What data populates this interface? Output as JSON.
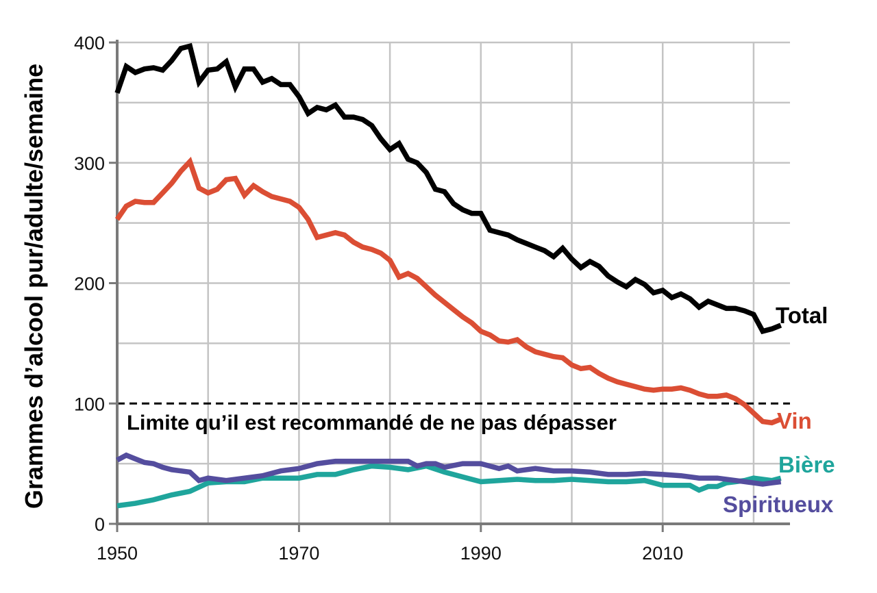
{
  "chart_data": {
    "type": "line",
    "ylabel": "Grammes d’alcool pur/adulte/semaine",
    "xlabel": "",
    "title": "",
    "xlim": [
      1950,
      2024
    ],
    "ylim": [
      0,
      400
    ],
    "x_ticks": [
      1950,
      1970,
      1990,
      2010
    ],
    "y_ticks": [
      0,
      100,
      200,
      300,
      400
    ],
    "grid": true,
    "reference_line": {
      "value": 100,
      "label": "Limite qu’il est recommandé de ne pas dépasser"
    },
    "series": [
      {
        "name": "Total",
        "color": "#000000",
        "points": [
          [
            1950,
            358
          ],
          [
            1951,
            380
          ],
          [
            1952,
            375
          ],
          [
            1953,
            378
          ],
          [
            1954,
            379
          ],
          [
            1955,
            377
          ],
          [
            1956,
            385
          ],
          [
            1957,
            395
          ],
          [
            1958,
            397
          ],
          [
            1959,
            367
          ],
          [
            1960,
            377
          ],
          [
            1961,
            378
          ],
          [
            1962,
            384
          ],
          [
            1963,
            363
          ],
          [
            1964,
            378
          ],
          [
            1965,
            378
          ],
          [
            1966,
            367
          ],
          [
            1967,
            370
          ],
          [
            1968,
            365
          ],
          [
            1969,
            365
          ],
          [
            1970,
            355
          ],
          [
            1971,
            341
          ],
          [
            1972,
            346
          ],
          [
            1973,
            344
          ],
          [
            1974,
            348
          ],
          [
            1975,
            338
          ],
          [
            1976,
            338
          ],
          [
            1977,
            336
          ],
          [
            1978,
            331
          ],
          [
            1979,
            320
          ],
          [
            1980,
            311
          ],
          [
            1981,
            316
          ],
          [
            1982,
            303
          ],
          [
            1983,
            300
          ],
          [
            1984,
            292
          ],
          [
            1985,
            278
          ],
          [
            1986,
            276
          ],
          [
            1987,
            266
          ],
          [
            1988,
            261
          ],
          [
            1989,
            258
          ],
          [
            1990,
            258
          ],
          [
            1991,
            244
          ],
          [
            1992,
            242
          ],
          [
            1993,
            240
          ],
          [
            1994,
            236
          ],
          [
            1995,
            233
          ],
          [
            1996,
            230
          ],
          [
            1997,
            227
          ],
          [
            1998,
            222
          ],
          [
            1999,
            229
          ],
          [
            2000,
            220
          ],
          [
            2001,
            213
          ],
          [
            2002,
            218
          ],
          [
            2003,
            214
          ],
          [
            2004,
            206
          ],
          [
            2005,
            201
          ],
          [
            2006,
            197
          ],
          [
            2007,
            203
          ],
          [
            2008,
            199
          ],
          [
            2009,
            192
          ],
          [
            2010,
            194
          ],
          [
            2011,
            188
          ],
          [
            2012,
            191
          ],
          [
            2013,
            187
          ],
          [
            2014,
            180
          ],
          [
            2015,
            185
          ],
          [
            2016,
            182
          ],
          [
            2017,
            179
          ],
          [
            2018,
            179
          ],
          [
            2019,
            177
          ],
          [
            2020,
            174
          ],
          [
            2021,
            160
          ],
          [
            2022,
            162
          ],
          [
            2023,
            165
          ]
        ]
      },
      {
        "name": "Vin",
        "color": "#db4e34",
        "points": [
          [
            1950,
            253
          ],
          [
            1951,
            264
          ],
          [
            1952,
            268
          ],
          [
            1953,
            267
          ],
          [
            1954,
            267
          ],
          [
            1955,
            275
          ],
          [
            1956,
            283
          ],
          [
            1957,
            293
          ],
          [
            1958,
            301
          ],
          [
            1959,
            279
          ],
          [
            1960,
            275
          ],
          [
            1961,
            278
          ],
          [
            1962,
            286
          ],
          [
            1963,
            287
          ],
          [
            1964,
            273
          ],
          [
            1965,
            281
          ],
          [
            1966,
            276
          ],
          [
            1967,
            272
          ],
          [
            1968,
            270
          ],
          [
            1969,
            268
          ],
          [
            1970,
            263
          ],
          [
            1971,
            253
          ],
          [
            1972,
            238
          ],
          [
            1973,
            240
          ],
          [
            1974,
            242
          ],
          [
            1975,
            240
          ],
          [
            1976,
            234
          ],
          [
            1977,
            230
          ],
          [
            1978,
            228
          ],
          [
            1979,
            225
          ],
          [
            1980,
            219
          ],
          [
            1981,
            205
          ],
          [
            1982,
            208
          ],
          [
            1983,
            204
          ],
          [
            1984,
            197
          ],
          [
            1985,
            190
          ],
          [
            1986,
            184
          ],
          [
            1987,
            178
          ],
          [
            1988,
            172
          ],
          [
            1989,
            167
          ],
          [
            1990,
            160
          ],
          [
            1991,
            157
          ],
          [
            1992,
            152
          ],
          [
            1993,
            151
          ],
          [
            1994,
            153
          ],
          [
            1995,
            147
          ],
          [
            1996,
            143
          ],
          [
            1997,
            141
          ],
          [
            1998,
            139
          ],
          [
            1999,
            138
          ],
          [
            2000,
            132
          ],
          [
            2001,
            129
          ],
          [
            2002,
            130
          ],
          [
            2003,
            125
          ],
          [
            2004,
            121
          ],
          [
            2005,
            118
          ],
          [
            2006,
            116
          ],
          [
            2007,
            114
          ],
          [
            2008,
            112
          ],
          [
            2009,
            111
          ],
          [
            2010,
            112
          ],
          [
            2011,
            112
          ],
          [
            2012,
            113
          ],
          [
            2013,
            111
          ],
          [
            2014,
            108
          ],
          [
            2015,
            106
          ],
          [
            2016,
            106
          ],
          [
            2017,
            107
          ],
          [
            2018,
            104
          ],
          [
            2019,
            99
          ],
          [
            2020,
            92
          ],
          [
            2021,
            85
          ],
          [
            2022,
            84
          ],
          [
            2023,
            87
          ]
        ]
      },
      {
        "name": "Bière",
        "color": "#1fa59c",
        "points": [
          [
            1950,
            15
          ],
          [
            1952,
            17
          ],
          [
            1954,
            20
          ],
          [
            1956,
            24
          ],
          [
            1958,
            27
          ],
          [
            1960,
            34
          ],
          [
            1962,
            35
          ],
          [
            1964,
            35
          ],
          [
            1966,
            38
          ],
          [
            1968,
            38
          ],
          [
            1970,
            38
          ],
          [
            1972,
            41
          ],
          [
            1974,
            41
          ],
          [
            1976,
            45
          ],
          [
            1978,
            48
          ],
          [
            1980,
            47
          ],
          [
            1982,
            45
          ],
          [
            1984,
            48
          ],
          [
            1986,
            43
          ],
          [
            1988,
            39
          ],
          [
            1990,
            35
          ],
          [
            1992,
            36
          ],
          [
            1994,
            37
          ],
          [
            1996,
            36
          ],
          [
            1998,
            36
          ],
          [
            2000,
            37
          ],
          [
            2002,
            36
          ],
          [
            2004,
            35
          ],
          [
            2006,
            35
          ],
          [
            2008,
            36
          ],
          [
            2010,
            32
          ],
          [
            2012,
            32
          ],
          [
            2013,
            32
          ],
          [
            2014,
            28
          ],
          [
            2015,
            31
          ],
          [
            2016,
            31
          ],
          [
            2017,
            34
          ],
          [
            2018,
            35
          ],
          [
            2019,
            36
          ],
          [
            2020,
            38
          ],
          [
            2021,
            37
          ],
          [
            2022,
            36
          ],
          [
            2023,
            38
          ]
        ]
      },
      {
        "name": "Spiritueux",
        "color": "#544d9e",
        "points": [
          [
            1950,
            53
          ],
          [
            1951,
            57
          ],
          [
            1952,
            54
          ],
          [
            1953,
            51
          ],
          [
            1954,
            50
          ],
          [
            1955,
            47
          ],
          [
            1956,
            45
          ],
          [
            1957,
            44
          ],
          [
            1958,
            43
          ],
          [
            1959,
            36
          ],
          [
            1960,
            38
          ],
          [
            1962,
            36
          ],
          [
            1964,
            38
          ],
          [
            1966,
            40
          ],
          [
            1968,
            44
          ],
          [
            1970,
            46
          ],
          [
            1972,
            50
          ],
          [
            1974,
            52
          ],
          [
            1976,
            52
          ],
          [
            1978,
            52
          ],
          [
            1980,
            52
          ],
          [
            1982,
            52
          ],
          [
            1983,
            48
          ],
          [
            1984,
            50
          ],
          [
            1985,
            50
          ],
          [
            1986,
            47
          ],
          [
            1988,
            50
          ],
          [
            1990,
            50
          ],
          [
            1992,
            46
          ],
          [
            1993,
            48
          ],
          [
            1994,
            44
          ],
          [
            1996,
            46
          ],
          [
            1998,
            44
          ],
          [
            2000,
            44
          ],
          [
            2002,
            43
          ],
          [
            2004,
            41
          ],
          [
            2006,
            41
          ],
          [
            2008,
            42
          ],
          [
            2010,
            41
          ],
          [
            2012,
            40
          ],
          [
            2014,
            38
          ],
          [
            2016,
            38
          ],
          [
            2018,
            36
          ],
          [
            2020,
            34
          ],
          [
            2021,
            33
          ],
          [
            2022,
            34
          ],
          [
            2023,
            35
          ]
        ]
      }
    ]
  }
}
